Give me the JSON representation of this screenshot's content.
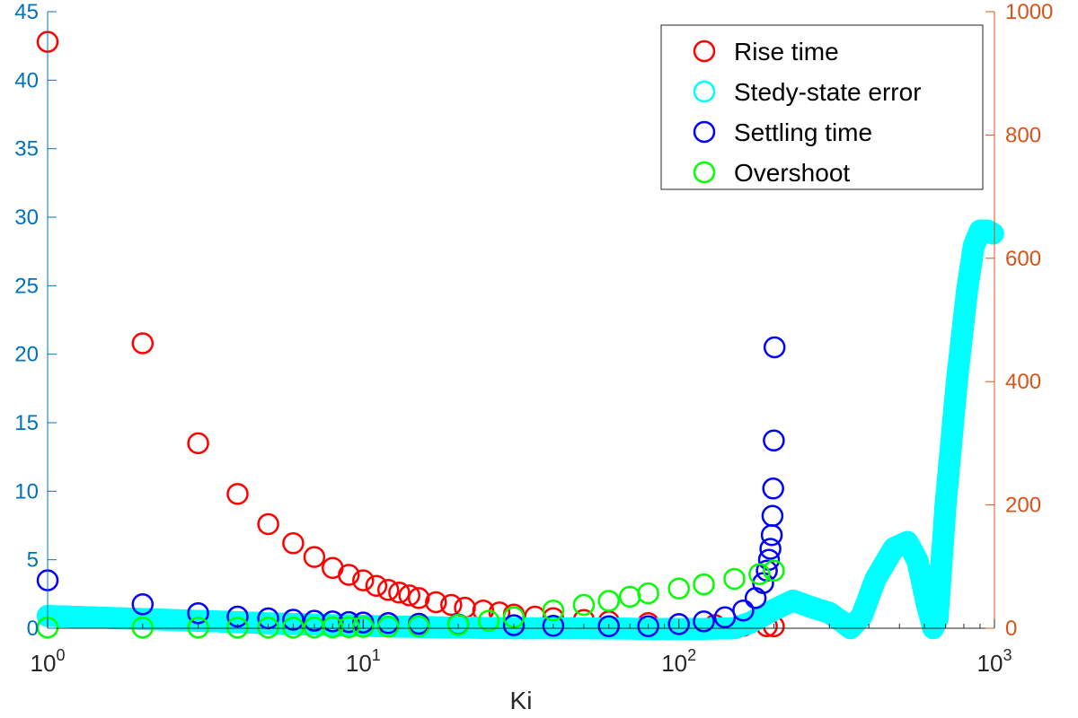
{
  "chart_data": {
    "type": "scatter",
    "title": "",
    "xlabel": "Ki",
    "x_scale": "log",
    "xlim": [
      1,
      1000
    ],
    "x_ticks": [
      {
        "value": 1,
        "base": "10",
        "exp": "0"
      },
      {
        "value": 10,
        "base": "10",
        "exp": "1"
      },
      {
        "value": 100,
        "base": "10",
        "exp": "2"
      },
      {
        "value": 1000,
        "base": "10",
        "exp": "3"
      }
    ],
    "y_left": {
      "ylim": [
        0,
        45
      ],
      "ticks": [
        "0",
        "5",
        "10",
        "15",
        "20",
        "25",
        "30",
        "35",
        "40",
        "45"
      ],
      "color": "#0072BD"
    },
    "y_right": {
      "ylim": [
        0,
        1000
      ],
      "ticks": [
        "0",
        "200",
        "400",
        "600",
        "800",
        "1000"
      ],
      "color": "#D95319"
    },
    "legend_position": "top-right",
    "grid": false,
    "series": [
      {
        "name": "Rise time",
        "color": "#ff0000",
        "axis": "left",
        "marker": "circle-open",
        "points": [
          [
            1,
            42.8
          ],
          [
            2,
            20.8
          ],
          [
            3,
            13.5
          ],
          [
            4,
            9.8
          ],
          [
            5,
            7.6
          ],
          [
            6,
            6.2
          ],
          [
            7,
            5.2
          ],
          [
            8,
            4.4
          ],
          [
            9,
            3.9
          ],
          [
            10,
            3.5
          ],
          [
            11,
            3.1
          ],
          [
            12,
            2.8
          ],
          [
            13,
            2.6
          ],
          [
            14,
            2.4
          ],
          [
            15,
            2.2
          ],
          [
            17,
            1.9
          ],
          [
            19,
            1.7
          ],
          [
            21,
            1.5
          ],
          [
            24,
            1.3
          ],
          [
            27,
            1.15
          ],
          [
            30,
            1.0
          ],
          [
            35,
            0.85
          ],
          [
            40,
            0.74
          ],
          [
            50,
            0.6
          ],
          [
            60,
            0.5
          ],
          [
            80,
            0.38
          ],
          [
            100,
            0.3
          ],
          [
            130,
            0.23
          ],
          [
            160,
            0.18
          ],
          [
            190,
            0.15
          ],
          [
            200,
            0.14
          ]
        ]
      },
      {
        "name": "Stedy-state error",
        "color": "#00ffff",
        "axis": "right",
        "marker": "circle-open",
        "points": [
          [
            1,
            20
          ],
          [
            2,
            15
          ],
          [
            3,
            12
          ],
          [
            4,
            10
          ],
          [
            5,
            8
          ],
          [
            6,
            7
          ],
          [
            7,
            6
          ],
          [
            8,
            5
          ],
          [
            9,
            5
          ],
          [
            10,
            4
          ],
          [
            12,
            3
          ],
          [
            15,
            2
          ],
          [
            20,
            1
          ],
          [
            30,
            0
          ],
          [
            50,
            0
          ],
          [
            80,
            -1
          ],
          [
            120,
            -1
          ],
          [
            150,
            0
          ],
          [
            170,
            10
          ],
          [
            200,
            30
          ],
          [
            230,
            45
          ],
          [
            260,
            35
          ],
          [
            300,
            25
          ],
          [
            330,
            10
          ],
          [
            350,
            0
          ],
          [
            380,
            20
          ],
          [
            420,
            80
          ],
          [
            480,
            130
          ],
          [
            530,
            140
          ],
          [
            570,
            110
          ],
          [
            610,
            40
          ],
          [
            640,
            0
          ],
          [
            660,
            15
          ],
          [
            700,
            200
          ],
          [
            760,
            400
          ],
          [
            820,
            550
          ],
          [
            860,
            620
          ],
          [
            900,
            645
          ],
          [
            950,
            645
          ],
          [
            990,
            640
          ]
        ]
      },
      {
        "name": "Settling time",
        "color": "#0000ff",
        "axis": "left",
        "marker": "circle-open",
        "points": [
          [
            1,
            3.5
          ],
          [
            2,
            1.75
          ],
          [
            3,
            1.1
          ],
          [
            4,
            0.85
          ],
          [
            5,
            0.72
          ],
          [
            6,
            0.62
          ],
          [
            7,
            0.55
          ],
          [
            8,
            0.5
          ],
          [
            9,
            0.45
          ],
          [
            10,
            0.42
          ],
          [
            12,
            0.38
          ],
          [
            15,
            0.33
          ],
          [
            20,
            0.28
          ],
          [
            30,
            0.22
          ],
          [
            40,
            0.18
          ],
          [
            60,
            0.15
          ],
          [
            80,
            0.15
          ],
          [
            100,
            0.3
          ],
          [
            120,
            0.5
          ],
          [
            140,
            0.8
          ],
          [
            160,
            1.3
          ],
          [
            175,
            2.2
          ],
          [
            185,
            3.3
          ],
          [
            190,
            4.2
          ],
          [
            193,
            5.0
          ],
          [
            195,
            5.8
          ],
          [
            197,
            6.8
          ],
          [
            198,
            8.2
          ],
          [
            199,
            10.2
          ],
          [
            200,
            13.7
          ],
          [
            201,
            20.5
          ]
        ]
      },
      {
        "name": "Overshoot",
        "color": "#00ff00",
        "axis": "left",
        "marker": "circle-open",
        "points": [
          [
            1,
            0.05
          ],
          [
            2,
            0.05
          ],
          [
            3,
            0.05
          ],
          [
            4,
            0.05
          ],
          [
            5,
            0.05
          ],
          [
            6,
            0.05
          ],
          [
            7,
            0.06
          ],
          [
            8,
            0.07
          ],
          [
            9,
            0.08
          ],
          [
            10,
            0.1
          ],
          [
            12,
            0.12
          ],
          [
            15,
            0.15
          ],
          [
            20,
            0.25
          ],
          [
            25,
            0.55
          ],
          [
            30,
            0.8
          ],
          [
            40,
            1.3
          ],
          [
            50,
            1.7
          ],
          [
            60,
            2.0
          ],
          [
            70,
            2.3
          ],
          [
            80,
            2.55
          ],
          [
            100,
            2.9
          ],
          [
            120,
            3.2
          ],
          [
            150,
            3.6
          ],
          [
            180,
            3.95
          ],
          [
            200,
            4.2
          ]
        ]
      }
    ]
  }
}
